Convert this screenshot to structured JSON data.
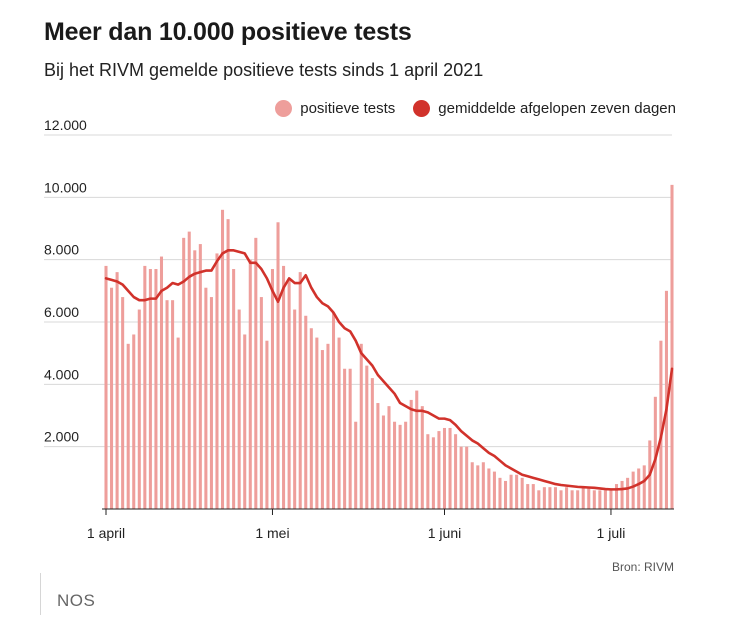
{
  "colors": {
    "bars": "#ee9e9b",
    "line": "#d1322b",
    "grid": "#d8d8d8"
  },
  "footer": {
    "source": "Bron: RIVM",
    "brand": "NOS"
  },
  "chart_data": {
    "type": "bar",
    "title": "Meer dan 10.000 positieve tests",
    "subtitle": "Bij het RIVM gemelde positieve tests sinds 1 april 2021",
    "legend": {
      "placement": "top-right",
      "entries": [
        "positieve tests",
        "gemiddelde afgelopen zeven dagen"
      ]
    },
    "ylim": [
      0,
      12000
    ],
    "grid": true,
    "y_ticks": [
      2000,
      4000,
      6000,
      8000,
      10000,
      12000
    ],
    "y_tick_labels": [
      "2.000",
      "4.000",
      "6.000",
      "8.000",
      "10.000",
      "12.000"
    ],
    "x_tick_labels": [
      {
        "label": "1 april",
        "index": 0
      },
      {
        "label": "1 mei",
        "index": 30
      },
      {
        "label": "1 juni",
        "index": 61
      },
      {
        "label": "1 juli",
        "index": 91
      }
    ],
    "x_start": "2021-04-01",
    "series": [
      {
        "name": "positieve tests",
        "type": "bar",
        "values": [
          7800,
          7100,
          7600,
          6800,
          5300,
          5600,
          6400,
          7800,
          7700,
          7700,
          8100,
          6700,
          6700,
          5500,
          8700,
          8900,
          8300,
          8500,
          7100,
          6800,
          8200,
          9600,
          9300,
          7700,
          6400,
          5600,
          8000,
          8700,
          6800,
          5400,
          7700,
          9200,
          7800,
          7400,
          6400,
          7600,
          6200,
          5800,
          5500,
          5100,
          5300,
          6300,
          5500,
          4500,
          4500,
          2800,
          5300,
          4600,
          4200,
          3400,
          3000,
          3300,
          2800,
          2700,
          2800,
          3500,
          3800,
          3300,
          2400,
          2300,
          2500,
          2600,
          2600,
          2400,
          2000,
          2000,
          1500,
          1400,
          1500,
          1300,
          1200,
          1000,
          900,
          1100,
          1100,
          1000,
          800,
          800,
          600,
          700,
          700,
          700,
          600,
          700,
          600,
          600,
          700,
          700,
          600,
          600,
          600,
          600,
          800,
          900,
          1000,
          1200,
          1300,
          1400,
          2200,
          3600,
          5400,
          7000,
          10400
        ]
      },
      {
        "name": "gemiddelde afgelopen zeven dagen",
        "type": "line",
        "values": [
          7400,
          7350,
          7300,
          7200,
          7000,
          6800,
          6700,
          6700,
          6750,
          6750,
          7000,
          7100,
          7250,
          7200,
          7300,
          7450,
          7550,
          7600,
          7650,
          7650,
          7950,
          8200,
          8300,
          8300,
          8250,
          8200,
          7900,
          7900,
          7700,
          7400,
          7000,
          6650,
          7100,
          7400,
          7250,
          7250,
          7500,
          7100,
          6800,
          6600,
          6500,
          6300,
          6000,
          5800,
          5700,
          5400,
          5000,
          4800,
          4600,
          4300,
          4100,
          3900,
          3700,
          3400,
          3300,
          3200,
          3150,
          3150,
          3100,
          3000,
          2900,
          2900,
          2850,
          2700,
          2500,
          2350,
          2200,
          2100,
          1950,
          1800,
          1700,
          1550,
          1400,
          1300,
          1200,
          1100,
          1050,
          1000,
          950,
          900,
          850,
          800,
          770,
          750,
          730,
          710,
          700,
          690,
          680,
          660,
          640,
          630,
          630,
          640,
          660,
          720,
          800,
          900,
          1100,
          1600,
          2300,
          3200,
          4500
        ]
      }
    ]
  }
}
